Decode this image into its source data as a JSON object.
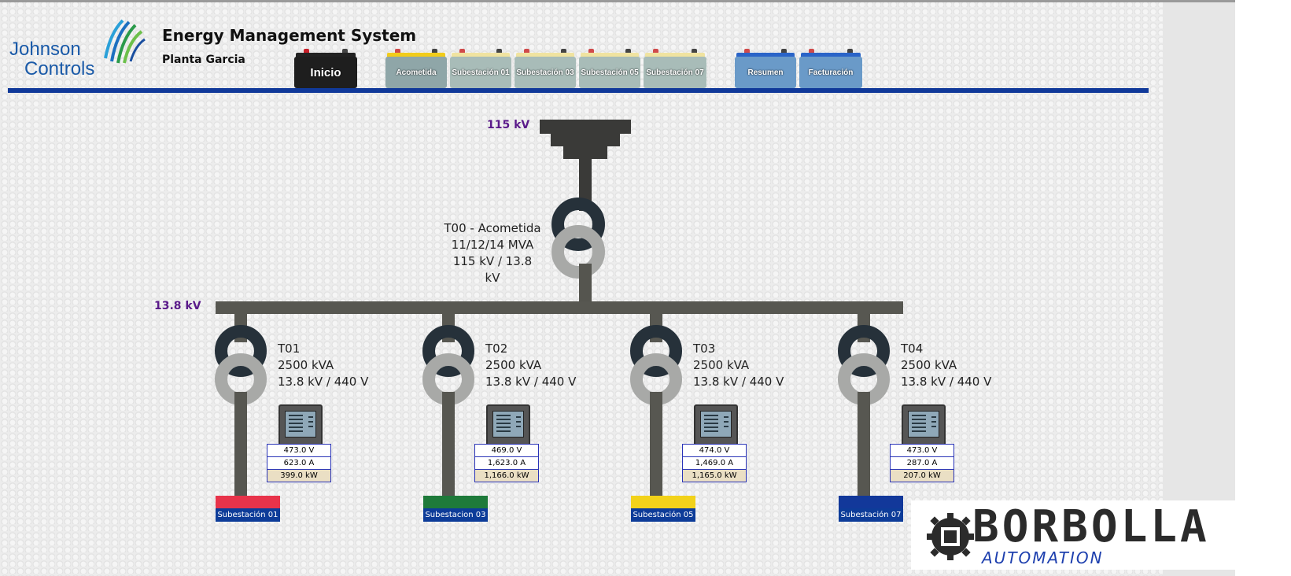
{
  "brand": {
    "logo_line1": "Johnson",
    "logo_line2": "Controls",
    "app_title": "Energy Management System",
    "plant_name": "Planta Garcia"
  },
  "nav": {
    "buttons": [
      {
        "label": "Inicio",
        "color": "#1e1e1e",
        "cap": "#222222"
      },
      {
        "label": "Acometida",
        "color": "#8fa6a8",
        "cap": "#f2cc1a"
      },
      {
        "label": "Subestación 01",
        "color": "#a8bcb8",
        "cap": "#f0e3a0"
      },
      {
        "label": "Subestación 03",
        "color": "#a8bcb8",
        "cap": "#f0e3a0"
      },
      {
        "label": "Subestación 05",
        "color": "#a8bcb8",
        "cap": "#f0e3a0"
      },
      {
        "label": "Subestación 07",
        "color": "#a8bcb8",
        "cap": "#f0e3a0"
      },
      {
        "label": "Resumen",
        "color": "#6a9ac8",
        "cap": "#2a64c8"
      },
      {
        "label": "Facturación",
        "color": "#6a9ac8",
        "cap": "#2a64c8"
      }
    ]
  },
  "diagram": {
    "main_voltage": "115 kV",
    "bus_voltage": "13.8 kV",
    "main_transformer": {
      "name": "T00 - Acometida",
      "rating": "11/12/14 MVA",
      "ratio": "115 kV / 13.8 kV"
    },
    "feeders": [
      {
        "name": "T01",
        "rating": "2500 kVA",
        "ratio": "13.8 kV / 440 V",
        "voltage": "473.0 V",
        "current": "623.0 A",
        "power": "399.0 kW",
        "substation": "Subestación 01",
        "sub_color": "#e8334a"
      },
      {
        "name": "T02",
        "rating": "2500 kVA",
        "ratio": "13.8 kV / 440 V",
        "voltage": "469.0 V",
        "current": "1,623.0 A",
        "power": "1,166.0 kW",
        "substation": "Subestacion 03",
        "sub_color": "#1e7a3a"
      },
      {
        "name": "T03",
        "rating": "2500 kVA",
        "ratio": "13.8 kV / 440 V",
        "voltage": "474.0 V",
        "current": "1,469.0 A",
        "power": "1,165.0 kW",
        "substation": "Subestación 05",
        "sub_color": "#f2d21a"
      },
      {
        "name": "T04",
        "rating": "2500 kVA",
        "ratio": "13.8 kV / 440 V",
        "voltage": "473.0 V",
        "current": "287.0 A",
        "power": "207.0 kW",
        "substation": "Subestación 07",
        "sub_color": "#12389a"
      }
    ]
  },
  "watermark": {
    "company": "BORBOLLA",
    "tagline": "AUTOMATION"
  }
}
